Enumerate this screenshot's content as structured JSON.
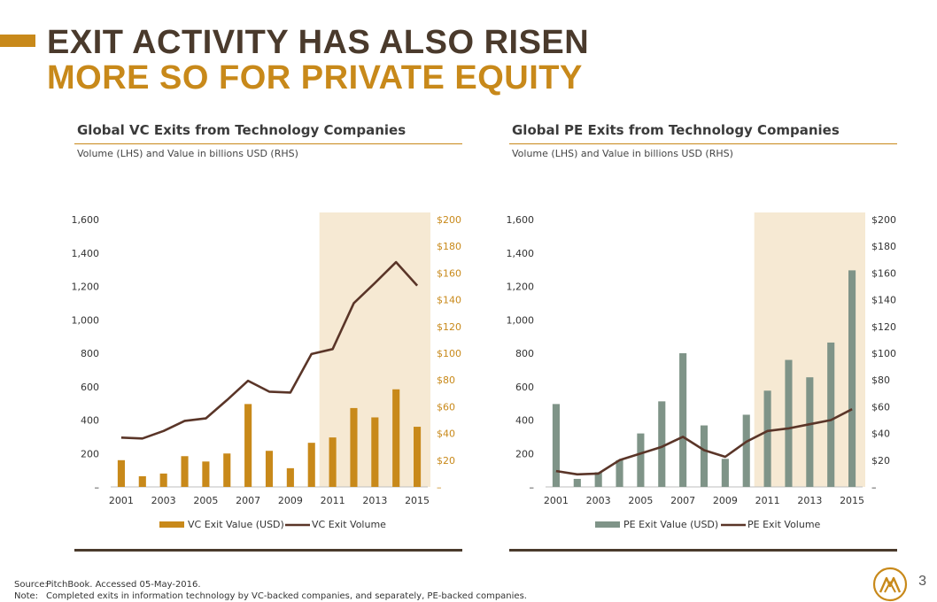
{
  "header": {
    "title_line1": "EXIT ACTIVITY HAS ALSO RISEN",
    "title_line2": "MORE SO FOR PRIVATE EQUITY"
  },
  "colors": {
    "brown": "#4a3a2c",
    "gold": "#c8891a",
    "pe_green": "#7f9488",
    "highlight": "#f6e9d3",
    "vc_line": "#5a3528",
    "axis_gold": "#c8891a"
  },
  "chart_data": [
    {
      "type": "bar",
      "title": "Global VC Exits from Technology Companies",
      "subtitle": "Volume (LHS) and Value in billions USD (RHS)",
      "categories": [
        "2001",
        "2002",
        "2003",
        "2004",
        "2005",
        "2006",
        "2007",
        "2008",
        "2009",
        "2010",
        "2011",
        "2012",
        "2013",
        "2014",
        "2015"
      ],
      "x_tick_labels": [
        "2001",
        "2003",
        "2005",
        "2007",
        "2009",
        "2011",
        "2013",
        "2015"
      ],
      "highlight_range": [
        "2011",
        "2015"
      ],
      "left_axis": {
        "ylim": [
          0,
          1600
        ],
        "ticks": [
          "–",
          "200",
          "400",
          "600",
          "800",
          "1,000",
          "1,200",
          "1,400",
          "1,600"
        ]
      },
      "right_axis": {
        "ylim": [
          0,
          200
        ],
        "ticks": [
          "–",
          "$20",
          "$40",
          "$60",
          "$80",
          "$100",
          "$120",
          "$140",
          "$160",
          "$180",
          "$200"
        ]
      },
      "series": [
        {
          "name": "VC Exit Value (USD)",
          "kind": "bar",
          "axis": "right",
          "color": "#c8891a",
          "values": [
            20,
            8,
            10,
            23,
            19,
            25,
            62,
            27,
            14,
            33,
            37,
            59,
            52,
            73,
            45
          ]
        },
        {
          "name": "VC Exit Volume",
          "kind": "line",
          "axis": "left",
          "color": "#5a3528",
          "values": [
            295,
            290,
            335,
            395,
            410,
            520,
            635,
            570,
            565,
            795,
            825,
            1100,
            1220,
            1345,
            1205
          ]
        }
      ]
    },
    {
      "type": "bar",
      "title": "Global PE Exits from Technology Companies",
      "subtitle": "Volume (LHS) and Value in billions USD (RHS)",
      "categories": [
        "2001",
        "2002",
        "2003",
        "2004",
        "2005",
        "2006",
        "2007",
        "2008",
        "2009",
        "2010",
        "2011",
        "2012",
        "2013",
        "2014",
        "2015"
      ],
      "x_tick_labels": [
        "2001",
        "2003",
        "2005",
        "2007",
        "2009",
        "2011",
        "2013",
        "2015"
      ],
      "highlight_range": [
        "2011",
        "2015"
      ],
      "left_axis": {
        "ylim": [
          0,
          1600
        ],
        "ticks": [
          "–",
          "200",
          "400",
          "600",
          "800",
          "1,000",
          "1,200",
          "1,400",
          "1,600"
        ]
      },
      "right_axis": {
        "ylim": [
          0,
          200
        ],
        "ticks": [
          "–",
          "$20",
          "$40",
          "$60",
          "$80",
          "$100",
          "$120",
          "$140",
          "$160",
          "$180",
          "$200"
        ]
      },
      "series": [
        {
          "name": "PE Exit Value (USD)",
          "kind": "bar",
          "axis": "right",
          "color": "#7f9488",
          "values": [
            62,
            6,
            11,
            20,
            40,
            64,
            100,
            46,
            21,
            54,
            72,
            95,
            82,
            108,
            162
          ]
        },
        {
          "name": "PE Exit Volume",
          "kind": "line",
          "axis": "left",
          "color": "#5a3528",
          "values": [
            95,
            75,
            80,
            160,
            200,
            240,
            300,
            220,
            180,
            270,
            335,
            350,
            375,
            400,
            465
          ]
        }
      ]
    }
  ],
  "footer": {
    "source_label": "Source:",
    "source_text": "PitchBook. Accessed 05-May-2016.",
    "note_label": "Note:",
    "note_text": "Completed exits in information technology by VC-backed companies, and separately, PE-backed companies."
  },
  "page_number": "3",
  "logo_icon": "mountain-logo-icon"
}
